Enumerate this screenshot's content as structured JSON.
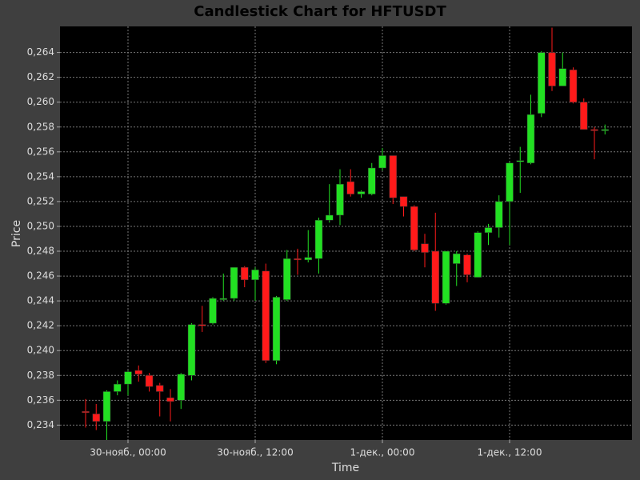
{
  "chart_data": {
    "type": "candlestick",
    "title": "Candlestick Chart for HFTUSDT",
    "x_label": "Time",
    "y_label": "Price",
    "categories": [
      null,
      null,
      null,
      null,
      "30-нояб., 00:00",
      null,
      null,
      null,
      null,
      null,
      null,
      null,
      null,
      null,
      null,
      null,
      "30-нояб., 12:00",
      null,
      null,
      null,
      null,
      null,
      null,
      null,
      null,
      null,
      null,
      null,
      "1-дек., 00:00",
      null,
      null,
      null,
      null,
      null,
      null,
      null,
      null,
      null,
      null,
      null,
      "1-дек., 12:00",
      null,
      null,
      null,
      null,
      null,
      null,
      null,
      null,
      null
    ],
    "open": [
      0.2351,
      0.2349,
      0.2343,
      0.2367,
      0.2373,
      0.2384,
      0.238,
      0.2372,
      0.2362,
      0.236,
      0.238,
      0.2421,
      0.2422,
      0.2441,
      0.2442,
      0.2467,
      0.2457,
      0.2464,
      0.2392,
      0.2441,
      0.2474,
      0.2473,
      0.2474,
      0.2505,
      0.2509,
      0.2536,
      0.2526,
      0.2526,
      0.2547,
      0.2557,
      0.2524,
      0.2516,
      0.2486,
      0.248,
      0.2438,
      0.247,
      0.2477,
      0.2459,
      0.2495,
      0.2499,
      0.252,
      0.2552,
      0.2551,
      0.2591,
      0.264,
      0.2613,
      0.2626,
      0.26,
      0.2578,
      0.2577
    ],
    "high": [
      0.2361,
      0.2357,
      0.2368,
      0.2376,
      0.2384,
      0.2388,
      0.2382,
      0.2374,
      0.2369,
      0.2382,
      0.2422,
      0.2436,
      0.2443,
      0.2462,
      0.2467,
      0.2468,
      0.2467,
      0.247,
      0.2444,
      0.2481,
      0.2482,
      0.2497,
      0.2507,
      0.2534,
      0.2546,
      0.2546,
      0.2529,
      0.2551,
      0.2563,
      0.2557,
      0.2524,
      0.2517,
      0.2494,
      0.2511,
      0.248,
      0.248,
      0.2478,
      0.2496,
      0.2502,
      0.2525,
      0.2552,
      0.2564,
      0.2606,
      0.2641,
      0.266,
      0.264,
      0.2628,
      0.2603,
      0.258,
      0.2582
    ],
    "low": [
      0.2338,
      0.2336,
      0.2328,
      0.2364,
      0.2364,
      0.2375,
      0.2367,
      0.2347,
      0.2343,
      0.2353,
      0.2376,
      0.2415,
      0.2421,
      0.244,
      0.244,
      0.2451,
      0.244,
      0.239,
      0.2389,
      0.244,
      0.2461,
      0.2471,
      0.2462,
      0.2503,
      0.2501,
      0.2524,
      0.2523,
      0.2525,
      0.2545,
      0.2518,
      0.2508,
      0.248,
      0.2467,
      0.2432,
      0.2437,
      0.2452,
      0.2455,
      0.2459,
      0.2485,
      0.2491,
      0.2485,
      0.2527,
      0.255,
      0.2588,
      0.2609,
      0.2613,
      0.2599,
      0.2578,
      0.2554,
      0.2574
    ],
    "close": [
      0.235,
      0.2343,
      0.2367,
      0.2373,
      0.2383,
      0.2381,
      0.2371,
      0.2367,
      0.2359,
      0.2381,
      0.2421,
      0.242,
      0.2442,
      0.2442,
      0.2467,
      0.2457,
      0.2465,
      0.2392,
      0.2443,
      0.2474,
      0.2473,
      0.2475,
      0.2505,
      0.2509,
      0.2534,
      0.2526,
      0.2528,
      0.2547,
      0.2557,
      0.2523,
      0.2516,
      0.2481,
      0.2479,
      0.2438,
      0.248,
      0.2478,
      0.2461,
      0.2495,
      0.2499,
      0.252,
      0.2551,
      0.2553,
      0.259,
      0.264,
      0.2613,
      0.2627,
      0.26,
      0.2578,
      0.2577,
      0.2578
    ],
    "up_color": "#22e022",
    "down_color": "#ff1a1a",
    "ylim": [
      0.2328,
      0.2661
    ],
    "yticks": [
      {
        "value": 0.234,
        "label": "0,234"
      },
      {
        "value": 0.236,
        "label": "0,236"
      },
      {
        "value": 0.238,
        "label": "0,238"
      },
      {
        "value": 0.24,
        "label": "0,240"
      },
      {
        "value": 0.242,
        "label": "0,242"
      },
      {
        "value": 0.244,
        "label": "0,244"
      },
      {
        "value": 0.246,
        "label": "0,246"
      },
      {
        "value": 0.248,
        "label": "0,248"
      },
      {
        "value": 0.25,
        "label": "0,250"
      },
      {
        "value": 0.252,
        "label": "0,252"
      },
      {
        "value": 0.254,
        "label": "0,254"
      },
      {
        "value": 0.256,
        "label": "0,256"
      },
      {
        "value": 0.258,
        "label": "0,258"
      },
      {
        "value": 0.26,
        "label": "0,260"
      },
      {
        "value": 0.262,
        "label": "0,262"
      },
      {
        "value": 0.264,
        "label": "0,264"
      }
    ],
    "grid": true
  }
}
